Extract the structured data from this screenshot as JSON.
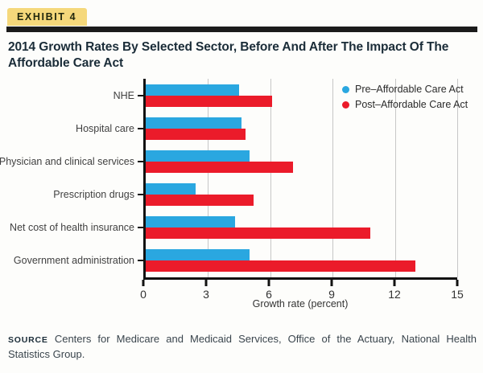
{
  "exhibit": {
    "label": "EXHIBIT 4"
  },
  "title": "2014 Growth Rates By Selected Sector, Before And After The Impact Of The Affordable Care Act",
  "chart_data": {
    "type": "bar",
    "orientation": "horizontal",
    "title": "2014 Growth Rates By Selected Sector, Before And After The Impact Of The Affordable Care Act",
    "categories": [
      "NHE",
      "Hospital care",
      "Physician and clinical services",
      "Prescription drugs",
      "Net cost of health insurance",
      "Government administration"
    ],
    "series": [
      {
        "name": "Pre–Affordable Care Act",
        "color": "#2aa7e0",
        "values": [
          4.5,
          4.6,
          5.0,
          2.4,
          4.3,
          5.0
        ]
      },
      {
        "name": "Post–Affordable Care Act",
        "color": "#eb1b2a",
        "values": [
          6.1,
          4.8,
          7.1,
          5.2,
          10.8,
          13.0
        ]
      }
    ],
    "xlabel": "Growth rate (percent)",
    "ylabel": "",
    "xlim": [
      0,
      15
    ],
    "xticks": [
      0,
      3,
      6,
      9,
      12,
      15
    ],
    "grid": true,
    "legend_position": "top-right"
  },
  "source": {
    "label": "SOURCE",
    "text": "Centers for Medicare and Medicaid Services, Office of the Actuary, National Health Statistics Group."
  },
  "colors": {
    "badge_bg": "#f5d87b",
    "badge_text": "#22280e",
    "rule": "#1b1b1b",
    "title_text": "#1a2c38",
    "pre_bar": "#2aa7e0",
    "post_bar": "#eb1b2a",
    "gridline": "#c7c7c7",
    "axis": "#121212",
    "label_text": "#414141"
  }
}
